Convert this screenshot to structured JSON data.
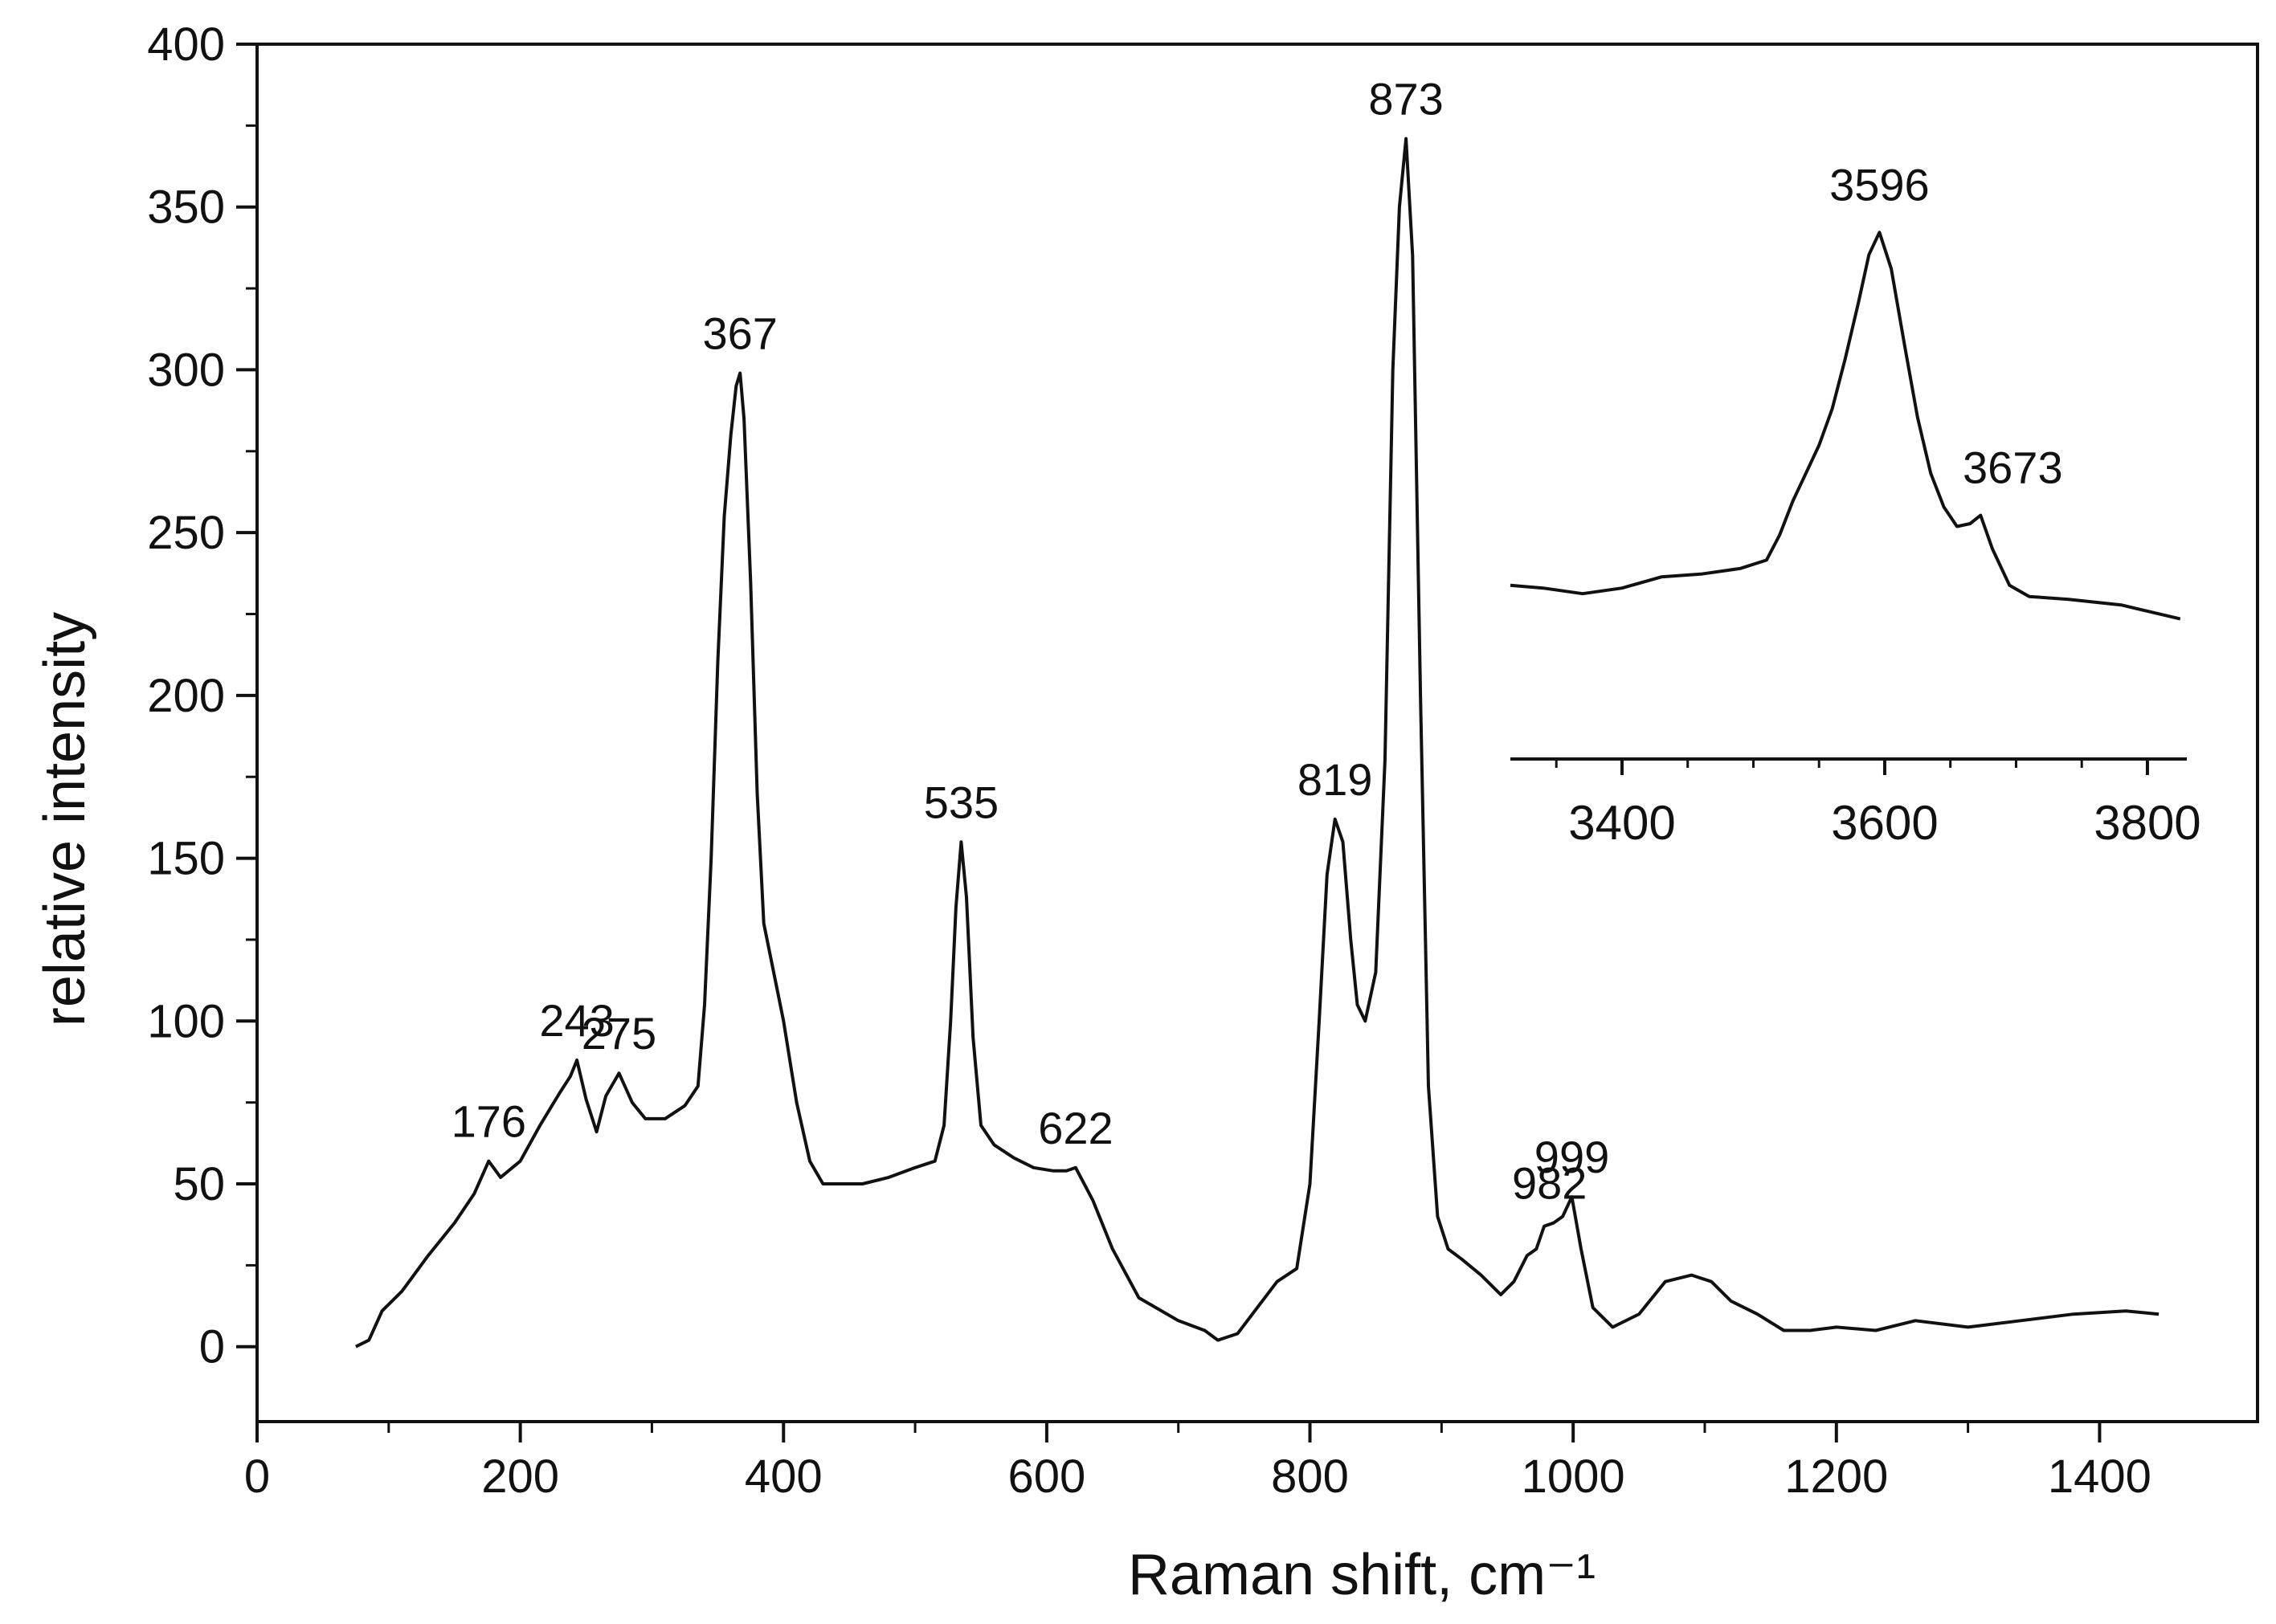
{
  "chart_data": [
    {
      "type": "line",
      "title": "",
      "xlabel": "Raman shift, cm⁻¹",
      "ylabel": "relative intensity",
      "xlim": [
        0,
        1520
      ],
      "ylim": [
        -23,
        400
      ],
      "xticks": [
        0,
        200,
        400,
        600,
        800,
        1000,
        1200,
        1400
      ],
      "yticks": [
        0,
        50,
        100,
        150,
        200,
        250,
        300,
        350,
        400
      ],
      "grid": false,
      "legend": "none",
      "line_color": "#111111",
      "series": [
        {
          "x": [
            75,
            85,
            95,
            110,
            130,
            150,
            165,
            176,
            185,
            200,
            215,
            230,
            238,
            243,
            250,
            258,
            265,
            275,
            285,
            295,
            310,
            325,
            335,
            340,
            345,
            350,
            355,
            360,
            364,
            367,
            370,
            375,
            380,
            385,
            390,
            400,
            410,
            420,
            430,
            440,
            460,
            480,
            500,
            515,
            522,
            527,
            531,
            535,
            539,
            544,
            550,
            560,
            575,
            590,
            605,
            615,
            622,
            635,
            650,
            670,
            700,
            720,
            730,
            745,
            760,
            775,
            790,
            800,
            807,
            813,
            819,
            825,
            831,
            836,
            842,
            850,
            857,
            863,
            868,
            873,
            878,
            884,
            890,
            897,
            905,
            915,
            930,
            945,
            955,
            965,
            972,
            978,
            985,
            992,
            999,
            1006,
            1015,
            1030,
            1050,
            1070,
            1090,
            1105,
            1120,
            1140,
            1160,
            1180,
            1200,
            1230,
            1260,
            1300,
            1340,
            1380,
            1420,
            1445
          ],
          "y": [
            0,
            2,
            11,
            17,
            28,
            38,
            47,
            57,
            52,
            57,
            68,
            78,
            83,
            88,
            76,
            66,
            77,
            84,
            75,
            70,
            70,
            74,
            80,
            105,
            150,
            210,
            255,
            280,
            295,
            299,
            285,
            235,
            170,
            130,
            120,
            100,
            75,
            57,
            50,
            50,
            50,
            52,
            55,
            57,
            68,
            100,
            135,
            155,
            138,
            95,
            68,
            62,
            58,
            55,
            54,
            54,
            55,
            45,
            30,
            15,
            8,
            5,
            2,
            4,
            12,
            20,
            24,
            50,
            100,
            145,
            162,
            155,
            125,
            105,
            100,
            115,
            180,
            300,
            350,
            371,
            335,
            200,
            80,
            40,
            30,
            27,
            22,
            16,
            20,
            28,
            30,
            37,
            38,
            40,
            46,
            30,
            12,
            6,
            10,
            20,
            22,
            20,
            14,
            10,
            5,
            5,
            6,
            5,
            8,
            6,
            8,
            10,
            11,
            10
          ]
        }
      ],
      "annotations": [
        {
          "x": 176,
          "y": 57,
          "text": "176"
        },
        {
          "x": 243,
          "y": 88,
          "text": "243"
        },
        {
          "x": 275,
          "y": 84,
          "text": "275"
        },
        {
          "x": 367,
          "y": 299,
          "text": "367"
        },
        {
          "x": 535,
          "y": 155,
          "text": "535"
        },
        {
          "x": 622,
          "y": 55,
          "text": "622"
        },
        {
          "x": 819,
          "y": 162,
          "text": "819"
        },
        {
          "x": 873,
          "y": 371,
          "text": "873"
        },
        {
          "x": 982,
          "y": 38,
          "text": "982"
        },
        {
          "x": 999,
          "y": 46,
          "text": "999"
        }
      ]
    },
    {
      "type": "line",
      "title": "",
      "xlabel": "",
      "ylabel": "",
      "xlim": [
        3315,
        3830
      ],
      "xticks": [
        3400,
        3600,
        3800
      ],
      "y_axis_labels": "none",
      "grid": false,
      "legend": "none",
      "line_color": "#111111",
      "series": [
        {
          "x": [
            3315,
            3340,
            3370,
            3400,
            3430,
            3460,
            3490,
            3510,
            3520,
            3530,
            3540,
            3550,
            3560,
            3570,
            3580,
            3588,
            3596,
            3605,
            3615,
            3625,
            3635,
            3645,
            3655,
            3665,
            3673,
            3682,
            3695,
            3710,
            3740,
            3780,
            3825
          ],
          "y": [
            212,
            211,
            209,
            211,
            215,
            216,
            218,
            221,
            230,
            242,
            252,
            262,
            275,
            293,
            313,
            330,
            338,
            325,
            298,
            272,
            252,
            240,
            233,
            234,
            237,
            225,
            212,
            208,
            207,
            205,
            200
          ]
        }
      ],
      "annotations": [
        {
          "x": 3596,
          "y": 338,
          "text": "3596"
        },
        {
          "x": 3673,
          "y": 237,
          "text": "3673"
        }
      ]
    }
  ]
}
